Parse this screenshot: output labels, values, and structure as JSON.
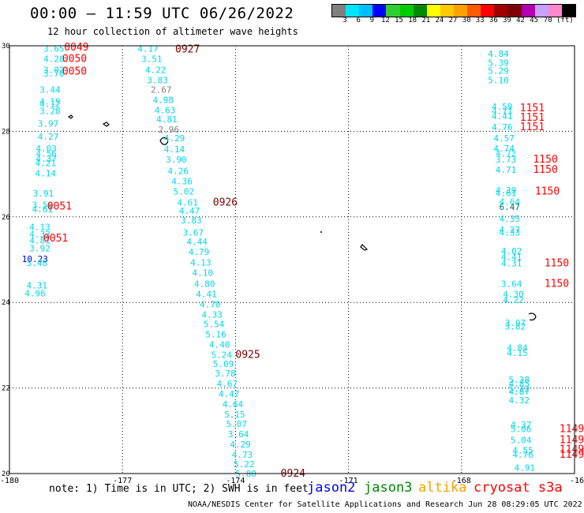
{
  "title": "00:00 – 11:59 UTC 06/26/2022",
  "subtitle": "12 hour collection of altimeter wave heights",
  "colorbar": {
    "colors": [
      "#808080",
      "#00e5ff",
      "#00bfff",
      "#0000ff",
      "#32cd32",
      "#00cc00",
      "#008800",
      "#ffff00",
      "#ffc800",
      "#ffa000",
      "#ff5a00",
      "#ff0000",
      "#a00000",
      "#800000",
      "#b000b0",
      "#c8a0ff",
      "#ff88cc",
      "#000000"
    ],
    "ticks": [
      "3",
      "6",
      "9",
      "12",
      "15",
      "18",
      "21",
      "24",
      "27",
      "30",
      "33",
      "36",
      "39",
      "42",
      "45",
      "70 (ft)"
    ]
  },
  "map": {
    "x_ticks": [
      "-180",
      "-177",
      "-174",
      "-171",
      "-168",
      "-16"
    ],
    "y_ticks": [
      "30",
      "28",
      "26",
      "24",
      "22",
      "20"
    ],
    "lon_range": [
      -180,
      -165
    ],
    "lat_range": [
      20,
      30
    ],
    "swh_color": "#00d8e8",
    "time_color": "#ff0000",
    "time_dark_color": "#800000"
  },
  "labels": [
    {
      "t": "3.65",
      "lon": -179.1,
      "lat": 29.94,
      "c": "cyan"
    },
    {
      "t": "4.28",
      "lon": -179.1,
      "lat": 29.7,
      "c": "cyan"
    },
    {
      "t": "3.02",
      "lon": -179.1,
      "lat": 29.44,
      "c": "cyan"
    },
    {
      "t": "3.70",
      "lon": -179.1,
      "lat": 29.35,
      "c": "cyan"
    },
    {
      "t": "3.44",
      "lon": -179.2,
      "lat": 28.98,
      "c": "cyan"
    },
    {
      "t": "4.19",
      "lon": -179.2,
      "lat": 28.7,
      "c": "cyan"
    },
    {
      "t": "4.12",
      "lon": -179.2,
      "lat": 28.64,
      "c": "cyan"
    },
    {
      "t": "3.28",
      "lon": -179.2,
      "lat": 28.48,
      "c": "cyan"
    },
    {
      "t": "3.97",
      "lon": -179.25,
      "lat": 28.18,
      "c": "cyan"
    },
    {
      "t": "4.27",
      "lon": -179.25,
      "lat": 27.88,
      "c": "cyan"
    },
    {
      "t": "4.03",
      "lon": -179.3,
      "lat": 27.6,
      "c": "cyan"
    },
    {
      "t": "4.56",
      "lon": -179.3,
      "lat": 27.48,
      "c": "cyan"
    },
    {
      "t": "4.37",
      "lon": -179.3,
      "lat": 27.36,
      "c": "cyan"
    },
    {
      "t": "4.21",
      "lon": -179.32,
      "lat": 27.26,
      "c": "cyan"
    },
    {
      "t": "4.14",
      "lon": -179.32,
      "lat": 27.02,
      "c": "cyan"
    },
    {
      "t": "3.91",
      "lon": -179.38,
      "lat": 26.55,
      "c": "cyan"
    },
    {
      "t": "3.58",
      "lon": -179.4,
      "lat": 26.28,
      "c": "cyan"
    },
    {
      "t": "4.61",
      "lon": -179.4,
      "lat": 26.18,
      "c": "cyan"
    },
    {
      "t": "4.13",
      "lon": -179.47,
      "lat": 25.77,
      "c": "cyan"
    },
    {
      "t": "4.32",
      "lon": -179.47,
      "lat": 25.6,
      "c": "cyan"
    },
    {
      "t": "4.81",
      "lon": -179.47,
      "lat": 25.45,
      "c": "cyan"
    },
    {
      "t": "3.92",
      "lon": -179.47,
      "lat": 25.27,
      "c": "cyan"
    },
    {
      "t": "10.23",
      "lon": -179.67,
      "lat": 25.02,
      "c": "blue"
    },
    {
      "t": "3.48",
      "lon": -179.55,
      "lat": 24.93,
      "c": "cyan"
    },
    {
      "t": "4.31",
      "lon": -179.55,
      "lat": 24.4,
      "c": "cyan"
    },
    {
      "t": "4.96",
      "lon": -179.6,
      "lat": 24.22,
      "c": "cyan"
    },
    {
      "t": "4.17",
      "lon": -176.6,
      "lat": 29.94,
      "c": "cyan"
    },
    {
      "t": "3.51",
      "lon": -176.5,
      "lat": 29.7,
      "c": "cyan"
    },
    {
      "t": "4.22",
      "lon": -176.4,
      "lat": 29.44,
      "c": "cyan"
    },
    {
      "t": "3.83",
      "lon": -176.35,
      "lat": 29.2,
      "c": "cyan"
    },
    {
      "t": "2.67",
      "lon": -176.25,
      "lat": 28.98,
      "c": "grey"
    },
    {
      "t": "4.98",
      "lon": -176.2,
      "lat": 28.74,
      "c": "cyan"
    },
    {
      "t": "4.63",
      "lon": -176.15,
      "lat": 28.5,
      "c": "cyan"
    },
    {
      "t": "4.81",
      "lon": -176.1,
      "lat": 28.28,
      "c": "cyan"
    },
    {
      "t": "2.96",
      "lon": -176.05,
      "lat": 28.04,
      "c": "grey"
    },
    {
      "t": "4.29",
      "lon": -175.9,
      "lat": 27.84,
      "c": "cyan"
    },
    {
      "t": "4.14",
      "lon": -175.9,
      "lat": 27.58,
      "c": "cyan"
    },
    {
      "t": "3.90",
      "lon": -175.85,
      "lat": 27.34,
      "c": "cyan"
    },
    {
      "t": "4.26",
      "lon": -175.8,
      "lat": 27.08,
      "c": "cyan"
    },
    {
      "t": "4.36",
      "lon": -175.7,
      "lat": 26.84,
      "c": "cyan"
    },
    {
      "t": "5.02",
      "lon": -175.65,
      "lat": 26.6,
      "c": "cyan"
    },
    {
      "t": "4.61",
      "lon": -175.55,
      "lat": 26.34,
      "c": "cyan"
    },
    {
      "t": "4.47",
      "lon": -175.5,
      "lat": 26.14,
      "c": "cyan"
    },
    {
      "t": "3.83",
      "lon": -175.45,
      "lat": 25.92,
      "c": "cyan"
    },
    {
      "t": "3.67",
      "lon": -175.4,
      "lat": 25.64,
      "c": "cyan"
    },
    {
      "t": "4.44",
      "lon": -175.3,
      "lat": 25.42,
      "c": "cyan"
    },
    {
      "t": "4.79",
      "lon": -175.25,
      "lat": 25.18,
      "c": "cyan"
    },
    {
      "t": "4.13",
      "lon": -175.2,
      "lat": 24.94,
      "c": "cyan"
    },
    {
      "t": "4.10",
      "lon": -175.15,
      "lat": 24.7,
      "c": "cyan"
    },
    {
      "t": "4.80",
      "lon": -175.1,
      "lat": 24.44,
      "c": "cyan"
    },
    {
      "t": "4.41",
      "lon": -175.05,
      "lat": 24.2,
      "c": "cyan"
    },
    {
      "t": "4.70",
      "lon": -174.95,
      "lat": 23.96,
      "c": "cyan"
    },
    {
      "t": "4.33",
      "lon": -174.9,
      "lat": 23.72,
      "c": "cyan"
    },
    {
      "t": "5.54",
      "lon": -174.85,
      "lat": 23.5,
      "c": "cyan"
    },
    {
      "t": "5.16",
      "lon": -174.8,
      "lat": 23.26,
      "c": "cyan"
    },
    {
      "t": "4.40",
      "lon": -174.7,
      "lat": 23.02,
      "c": "cyan"
    },
    {
      "t": "5.24",
      "lon": -174.65,
      "lat": 22.78,
      "c": "cyan"
    },
    {
      "t": "5.09",
      "lon": -174.6,
      "lat": 22.56,
      "c": "cyan"
    },
    {
      "t": "3.78",
      "lon": -174.55,
      "lat": 22.34,
      "c": "cyan"
    },
    {
      "t": "4.67",
      "lon": -174.5,
      "lat": 22.1,
      "c": "cyan"
    },
    {
      "t": "4.47",
      "lon": -174.45,
      "lat": 21.86,
      "c": "cyan"
    },
    {
      "t": "4.64",
      "lon": -174.35,
      "lat": 21.62,
      "c": "cyan"
    },
    {
      "t": "5.15",
      "lon": -174.3,
      "lat": 21.38,
      "c": "cyan"
    },
    {
      "t": "5.07",
      "lon": -174.25,
      "lat": 21.16,
      "c": "cyan"
    },
    {
      "t": "3.64",
      "lon": -174.2,
      "lat": 20.92,
      "c": "cyan"
    },
    {
      "t": "4.29",
      "lon": -174.15,
      "lat": 20.68,
      "c": "cyan"
    },
    {
      "t": "4.73",
      "lon": -174.1,
      "lat": 20.44,
      "c": "cyan"
    },
    {
      "t": "5.22",
      "lon": -174.05,
      "lat": 20.22,
      "c": "cyan"
    },
    {
      "t": "5.80",
      "lon": -174.0,
      "lat": 20.0,
      "c": "cyan"
    },
    {
      "t": "4.84",
      "lon": -167.3,
      "lat": 29.82,
      "c": "cyan"
    },
    {
      "t": "5.39",
      "lon": -167.3,
      "lat": 29.6,
      "c": "cyan"
    },
    {
      "t": "5.29",
      "lon": -167.3,
      "lat": 29.42,
      "c": "cyan"
    },
    {
      "t": "5.10",
      "lon": -167.3,
      "lat": 29.2,
      "c": "cyan"
    },
    {
      "t": "4.59",
      "lon": -167.2,
      "lat": 28.58,
      "c": "cyan"
    },
    {
      "t": "4.71",
      "lon": -167.2,
      "lat": 28.48,
      "c": "cyan"
    },
    {
      "t": "4.41",
      "lon": -167.2,
      "lat": 28.36,
      "c": "cyan"
    },
    {
      "t": "4.76",
      "lon": -167.2,
      "lat": 28.1,
      "c": "cyan"
    },
    {
      "t": "4.57",
      "lon": -167.15,
      "lat": 27.84,
      "c": "cyan"
    },
    {
      "t": "4.74",
      "lon": -167.15,
      "lat": 27.6,
      "c": "cyan"
    },
    {
      "t": "4.72",
      "lon": -167.1,
      "lat": 27.48,
      "c": "cyan"
    },
    {
      "t": "3.73",
      "lon": -167.1,
      "lat": 27.34,
      "c": "cyan"
    },
    {
      "t": "4.71",
      "lon": -167.1,
      "lat": 27.1,
      "c": "cyan"
    },
    {
      "t": "4.39",
      "lon": -167.1,
      "lat": 26.62,
      "c": "cyan"
    },
    {
      "t": "4.61",
      "lon": -167.1,
      "lat": 26.56,
      "c": "cyan"
    },
    {
      "t": "4.64",
      "lon": -167.0,
      "lat": 26.36,
      "c": "cyan"
    },
    {
      "t": "6.47",
      "lon": -167.0,
      "lat": 26.24,
      "c": "teal"
    },
    {
      "t": "4.35",
      "lon": -167.0,
      "lat": 25.96,
      "c": "cyan"
    },
    {
      "t": "4.27",
      "lon": -167.0,
      "lat": 25.7,
      "c": "cyan"
    },
    {
      "t": "4.33",
      "lon": -167.0,
      "lat": 25.64,
      "c": "cyan"
    },
    {
      "t": "4.02",
      "lon": -166.95,
      "lat": 25.2,
      "c": "cyan"
    },
    {
      "t": "4.41",
      "lon": -166.95,
      "lat": 25.06,
      "c": "cyan"
    },
    {
      "t": "4.31",
      "lon": -166.95,
      "lat": 24.92,
      "c": "cyan"
    },
    {
      "t": "3.64",
      "lon": -166.95,
      "lat": 24.44,
      "c": "cyan"
    },
    {
      "t": "4.30",
      "lon": -166.9,
      "lat": 24.2,
      "c": "cyan"
    },
    {
      "t": "4.22",
      "lon": -166.9,
      "lat": 24.06,
      "c": "cyan"
    },
    {
      "t": "3.97",
      "lon": -166.85,
      "lat": 23.52,
      "c": "cyan"
    },
    {
      "t": "3.82",
      "lon": -166.85,
      "lat": 23.44,
      "c": "cyan"
    },
    {
      "t": "4.84",
      "lon": -166.8,
      "lat": 22.94,
      "c": "cyan"
    },
    {
      "t": "4.15",
      "lon": -166.8,
      "lat": 22.82,
      "c": "cyan"
    },
    {
      "t": "5.38",
      "lon": -166.75,
      "lat": 22.2,
      "c": "cyan"
    },
    {
      "t": "4.85",
      "lon": -166.75,
      "lat": 22.1,
      "c": "cyan"
    },
    {
      "t": "5.22",
      "lon": -166.75,
      "lat": 21.98,
      "c": "cyan"
    },
    {
      "t": "4.87",
      "lon": -166.75,
      "lat": 21.92,
      "c": "cyan"
    },
    {
      "t": "4.32",
      "lon": -166.75,
      "lat": 21.72,
      "c": "cyan"
    },
    {
      "t": "4.37",
      "lon": -166.7,
      "lat": 21.14,
      "c": "cyan"
    },
    {
      "t": "5.06",
      "lon": -166.7,
      "lat": 21.04,
      "c": "cyan"
    },
    {
      "t": "5.04",
      "lon": -166.7,
      "lat": 20.78,
      "c": "cyan"
    },
    {
      "t": "4.55",
      "lon": -166.65,
      "lat": 20.54,
      "c": "cyan"
    },
    {
      "t": "4.76",
      "lon": -166.65,
      "lat": 20.44,
      "c": "cyan"
    },
    {
      "t": "4.91",
      "lon": -166.6,
      "lat": 20.14,
      "c": "cyan"
    },
    {
      "t": "0049",
      "lon": -178.55,
      "lat": 29.96,
      "c": "red"
    },
    {
      "t": "0050",
      "lon": -178.6,
      "lat": 29.7,
      "c": "red"
    },
    {
      "t": "0050",
      "lon": -178.6,
      "lat": 29.4,
      "c": "red"
    },
    {
      "t": "0051",
      "lon": -179.0,
      "lat": 26.25,
      "c": "red"
    },
    {
      "t": "0051",
      "lon": -179.1,
      "lat": 25.5,
      "c": "red"
    },
    {
      "t": "0927",
      "lon": -175.6,
      "lat": 29.92,
      "c": "dark"
    },
    {
      "t": "0926",
      "lon": -174.6,
      "lat": 26.34,
      "c": "dark"
    },
    {
      "t": "0925",
      "lon": -174.0,
      "lat": 22.78,
      "c": "dark"
    },
    {
      "t": "0924",
      "lon": -172.8,
      "lat": 20.0,
      "c": "dark"
    },
    {
      "t": "1151",
      "lon": -166.45,
      "lat": 28.54,
      "c": "red"
    },
    {
      "t": "1151",
      "lon": -166.45,
      "lat": 28.32,
      "c": "red"
    },
    {
      "t": "1151",
      "lon": -166.45,
      "lat": 28.1,
      "c": "red"
    },
    {
      "t": "1150",
      "lon": -166.1,
      "lat": 27.34,
      "c": "red"
    },
    {
      "t": "1150",
      "lon": -166.1,
      "lat": 27.1,
      "c": "red"
    },
    {
      "t": "1150",
      "lon": -166.05,
      "lat": 26.6,
      "c": "red"
    },
    {
      "t": "1150",
      "lon": -165.8,
      "lat": 24.92,
      "c": "red"
    },
    {
      "t": "1150",
      "lon": -165.8,
      "lat": 24.44,
      "c": "red"
    },
    {
      "t": "1149",
      "lon": -165.4,
      "lat": 21.04,
      "c": "red"
    },
    {
      "t": "1149",
      "lon": -165.4,
      "lat": 20.78,
      "c": "red"
    },
    {
      "t": "1149",
      "lon": -165.4,
      "lat": 20.56,
      "c": "red"
    },
    {
      "t": "1149",
      "lon": -165.4,
      "lat": 20.44,
      "c": "red"
    }
  ],
  "footer": {
    "note": "note: 1) Time is in UTC; 2) SWH is in feet",
    "legend": [
      {
        "name": "jason2",
        "color": "#0000ff"
      },
      {
        "name": "jason3",
        "color": "#008800"
      },
      {
        "name": "altika",
        "color": "#ffa000"
      },
      {
        "name": "cryosat s3a",
        "color": "#ff0000"
      }
    ],
    "credit": "NOAA/NESDIS Center for Satellite Applications and Research    Jun 28 08:29:05 UTC 2022"
  }
}
